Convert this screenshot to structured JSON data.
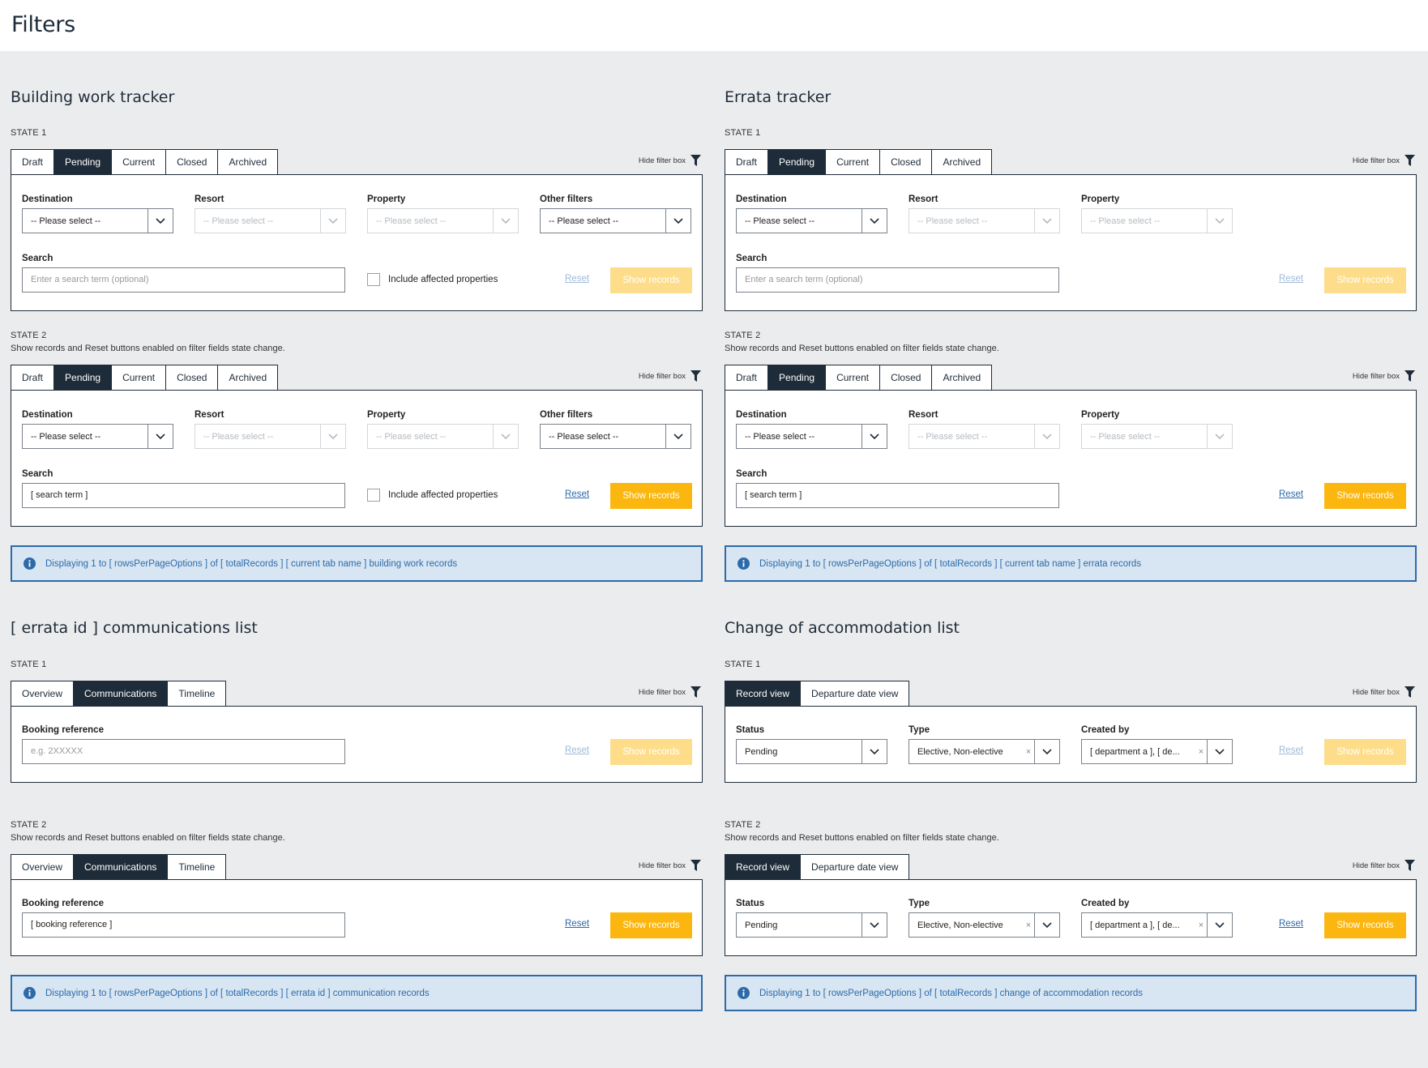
{
  "page": {
    "title": "Filters"
  },
  "common": {
    "state1": "STATE 1",
    "state2": "STATE 2",
    "state2_desc": "Show records and Reset buttons enabled on filter fields state change.",
    "hide_filter": "Hide filter box",
    "reset": "Reset",
    "show_records": "Show records",
    "please_select": "-- Please select --",
    "include_affected": "Include affected properties",
    "search_label": "Search",
    "search_placeholder": "Enter a search term (optional)",
    "search_value": "[ search term ]"
  },
  "building": {
    "title": "Building work tracker",
    "tabs": [
      "Draft",
      "Pending",
      "Current",
      "Closed",
      "Archived"
    ],
    "active_tab": 1,
    "fields": {
      "destination": "Destination",
      "resort": "Resort",
      "property": "Property",
      "other": "Other filters"
    },
    "info": "Displaying 1 to [ rowsPerPageOptions ] of [ totalRecords ] [ current tab name ] building work records"
  },
  "errata": {
    "title": "Errata tracker",
    "tabs": [
      "Draft",
      "Pending",
      "Current",
      "Closed",
      "Archived"
    ],
    "active_tab": 1,
    "fields": {
      "destination": "Destination",
      "resort": "Resort",
      "property": "Property"
    },
    "info": "Displaying 1 to [ rowsPerPageOptions ] of [ totalRecords ] [ current tab name ] errata records"
  },
  "comms": {
    "title": "[ errata id ] communications list",
    "tabs": [
      "Overview",
      "Communications",
      "Timeline"
    ],
    "active_tab": 1,
    "booking_label": "Booking reference",
    "booking_placeholder": "e.g. 2XXXXX",
    "booking_value": "[ booking reference ]",
    "info": "Displaying 1 to [ rowsPerPageOptions ] of [ totalRecords ] [ errata id ] communication records"
  },
  "accom": {
    "title": "Change of accommodation list",
    "tabs": [
      "Record view",
      "Departure date view"
    ],
    "active_tab": 0,
    "status_label": "Status",
    "status_value": "Pending",
    "type_label": "Type",
    "type_value": "Elective, Non-elective",
    "created_label": "Created by",
    "created_value": "[ department a ], [ de...",
    "info": "Displaying 1 to [ rowsPerPageOptions ] of [ totalRecords ] change of accommodation records"
  },
  "colors": {
    "dark": "#1e2b38",
    "accent": "#fbb60f",
    "link": "#2d6aa8",
    "info_bg": "#d8e6f3",
    "page_bg": "#ebecee"
  },
  "icons": [
    "filter-icon",
    "chevron-down-icon",
    "info-icon",
    "clear-icon"
  ]
}
